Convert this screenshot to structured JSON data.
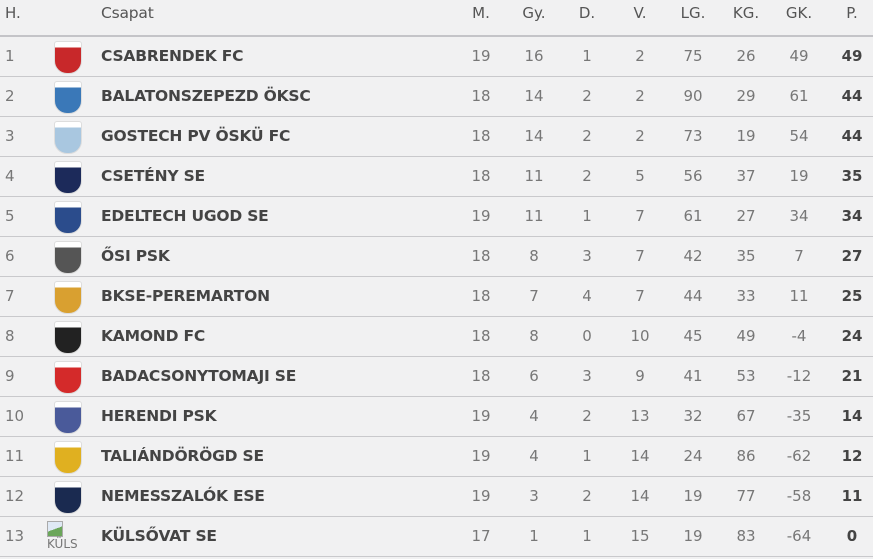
{
  "headers": {
    "pos": "H.",
    "team": "Csapat",
    "m": "M.",
    "gy": "Gy.",
    "d": "D.",
    "v": "V.",
    "lg": "LG.",
    "kg": "KG.",
    "gk": "GK.",
    "p": "P."
  },
  "rows": [
    {
      "pos": "1",
      "team": "CSABRENDEK FC",
      "m": "19",
      "gy": "16",
      "d": "1",
      "v": "2",
      "lg": "75",
      "kg": "26",
      "gk": "49",
      "p": "49",
      "logo_color": "#c8282a"
    },
    {
      "pos": "2",
      "team": "BALATONSZEPEZD ÖKSC",
      "m": "18",
      "gy": "14",
      "d": "2",
      "v": "2",
      "lg": "90",
      "kg": "29",
      "gk": "61",
      "p": "44",
      "logo_color": "#3a78b8"
    },
    {
      "pos": "3",
      "team": "GOSTECH PV ÖSKÜ FC",
      "m": "18",
      "gy": "14",
      "d": "2",
      "v": "2",
      "lg": "73",
      "kg": "19",
      "gk": "54",
      "p": "44",
      "logo_color": "#a9c7e0"
    },
    {
      "pos": "4",
      "team": "CSETÉNY SE",
      "m": "18",
      "gy": "11",
      "d": "2",
      "v": "5",
      "lg": "56",
      "kg": "37",
      "gk": "19",
      "p": "35",
      "logo_color": "#1c2a5a"
    },
    {
      "pos": "5",
      "team": "EDELTECH UGOD SE",
      "m": "19",
      "gy": "11",
      "d": "1",
      "v": "7",
      "lg": "61",
      "kg": "27",
      "gk": "34",
      "p": "34",
      "logo_color": "#2b4c8c"
    },
    {
      "pos": "6",
      "team": "ŐSI PSK",
      "m": "18",
      "gy": "8",
      "d": "3",
      "v": "7",
      "lg": "42",
      "kg": "35",
      "gk": "7",
      "p": "27",
      "logo_color": "#555555"
    },
    {
      "pos": "7",
      "team": "BKSE-PEREMARTON",
      "m": "18",
      "gy": "7",
      "d": "4",
      "v": "7",
      "lg": "44",
      "kg": "33",
      "gk": "11",
      "p": "25",
      "logo_color": "#d9a030"
    },
    {
      "pos": "8",
      "team": "KAMOND FC",
      "m": "18",
      "gy": "8",
      "d": "0",
      "v": "10",
      "lg": "45",
      "kg": "49",
      "gk": "-4",
      "p": "24",
      "logo_color": "#222222"
    },
    {
      "pos": "9",
      "team": "BADACSONYTOMAJI SE",
      "m": "18",
      "gy": "6",
      "d": "3",
      "v": "9",
      "lg": "41",
      "kg": "53",
      "gk": "-12",
      "p": "21",
      "logo_color": "#d42a2a"
    },
    {
      "pos": "10",
      "team": "HERENDI PSK",
      "m": "19",
      "gy": "4",
      "d": "2",
      "v": "13",
      "lg": "32",
      "kg": "67",
      "gk": "-35",
      "p": "14",
      "logo_color": "#4a5a9a"
    },
    {
      "pos": "11",
      "team": "TALIÁNDÖRÖGD SE",
      "m": "19",
      "gy": "4",
      "d": "1",
      "v": "14",
      "lg": "24",
      "kg": "86",
      "gk": "-62",
      "p": "12",
      "logo_color": "#e0b020"
    },
    {
      "pos": "12",
      "team": "NEMESSZALÓK ESE",
      "m": "19",
      "gy": "3",
      "d": "2",
      "v": "14",
      "lg": "19",
      "kg": "77",
      "gk": "-58",
      "p": "11",
      "logo_color": "#1a2a50"
    },
    {
      "pos": "13",
      "team": "KÜLSŐVAT SE",
      "m": "17",
      "gy": "1",
      "d": "1",
      "v": "15",
      "lg": "19",
      "kg": "83",
      "gk": "-64",
      "p": "0",
      "logo_alt": "KÜLS"
    }
  ]
}
